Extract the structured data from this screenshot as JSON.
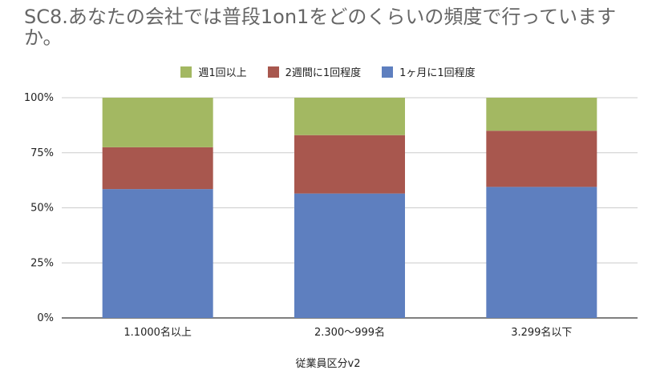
{
  "chart_data": {
    "type": "bar",
    "stacked": true,
    "percent": true,
    "title": "SC8.あなたの会社では普段1on1をどのくらいの頻度で行っていますか。",
    "xlabel": "従業員区分v2",
    "ylabel": "",
    "ylim": [
      0,
      100
    ],
    "yticks": [
      "0%",
      "25%",
      "50%",
      "75%",
      "100%"
    ],
    "legend_position": "top",
    "grid": true,
    "categories": [
      "1.1000名以上",
      "2.300〜999名",
      "3.299名以下"
    ],
    "series": [
      {
        "name": "1ヶ月に1回程度",
        "color": "#5e7fbf",
        "values": [
          58.5,
          56.5,
          59.5
        ]
      },
      {
        "name": "2週間に1回程度",
        "color": "#a8574e",
        "values": [
          19,
          26.5,
          25.5
        ]
      },
      {
        "name": "週1回以上",
        "color": "#a3b862",
        "values": [
          22.5,
          17,
          15
        ]
      }
    ],
    "legend_order": [
      2,
      1,
      0
    ]
  }
}
